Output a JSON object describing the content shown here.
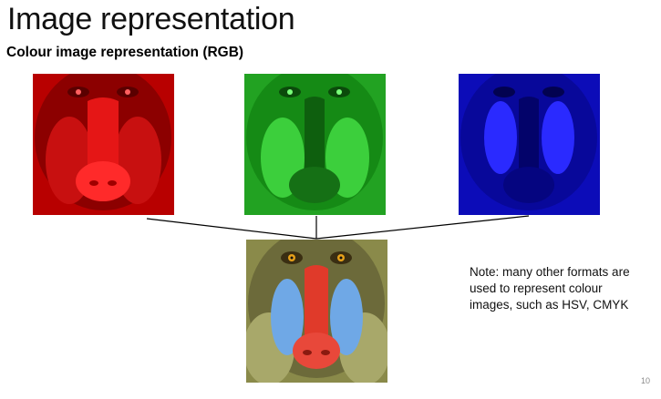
{
  "slide": {
    "title": "Image representation",
    "subtitle": "Colour image representation (RGB)",
    "note_lines": [
      "Note: many other formats are",
      "used to represent colour",
      "images, such as HSV, CMYK"
    ],
    "page_number": "10"
  },
  "images": {
    "red_channel": {
      "label": "red-channel-mandrill",
      "tint": "#d40000"
    },
    "green_channel": {
      "label": "green-channel-mandrill",
      "tint": "#1fbf1f"
    },
    "blue_channel": {
      "label": "blue-channel-mandrill",
      "tint": "#1010e0"
    },
    "combined": {
      "label": "rgb-mandrill"
    }
  },
  "colors": {
    "line": "#000000",
    "text": "#111111",
    "page_number": "#8a8a8a"
  }
}
